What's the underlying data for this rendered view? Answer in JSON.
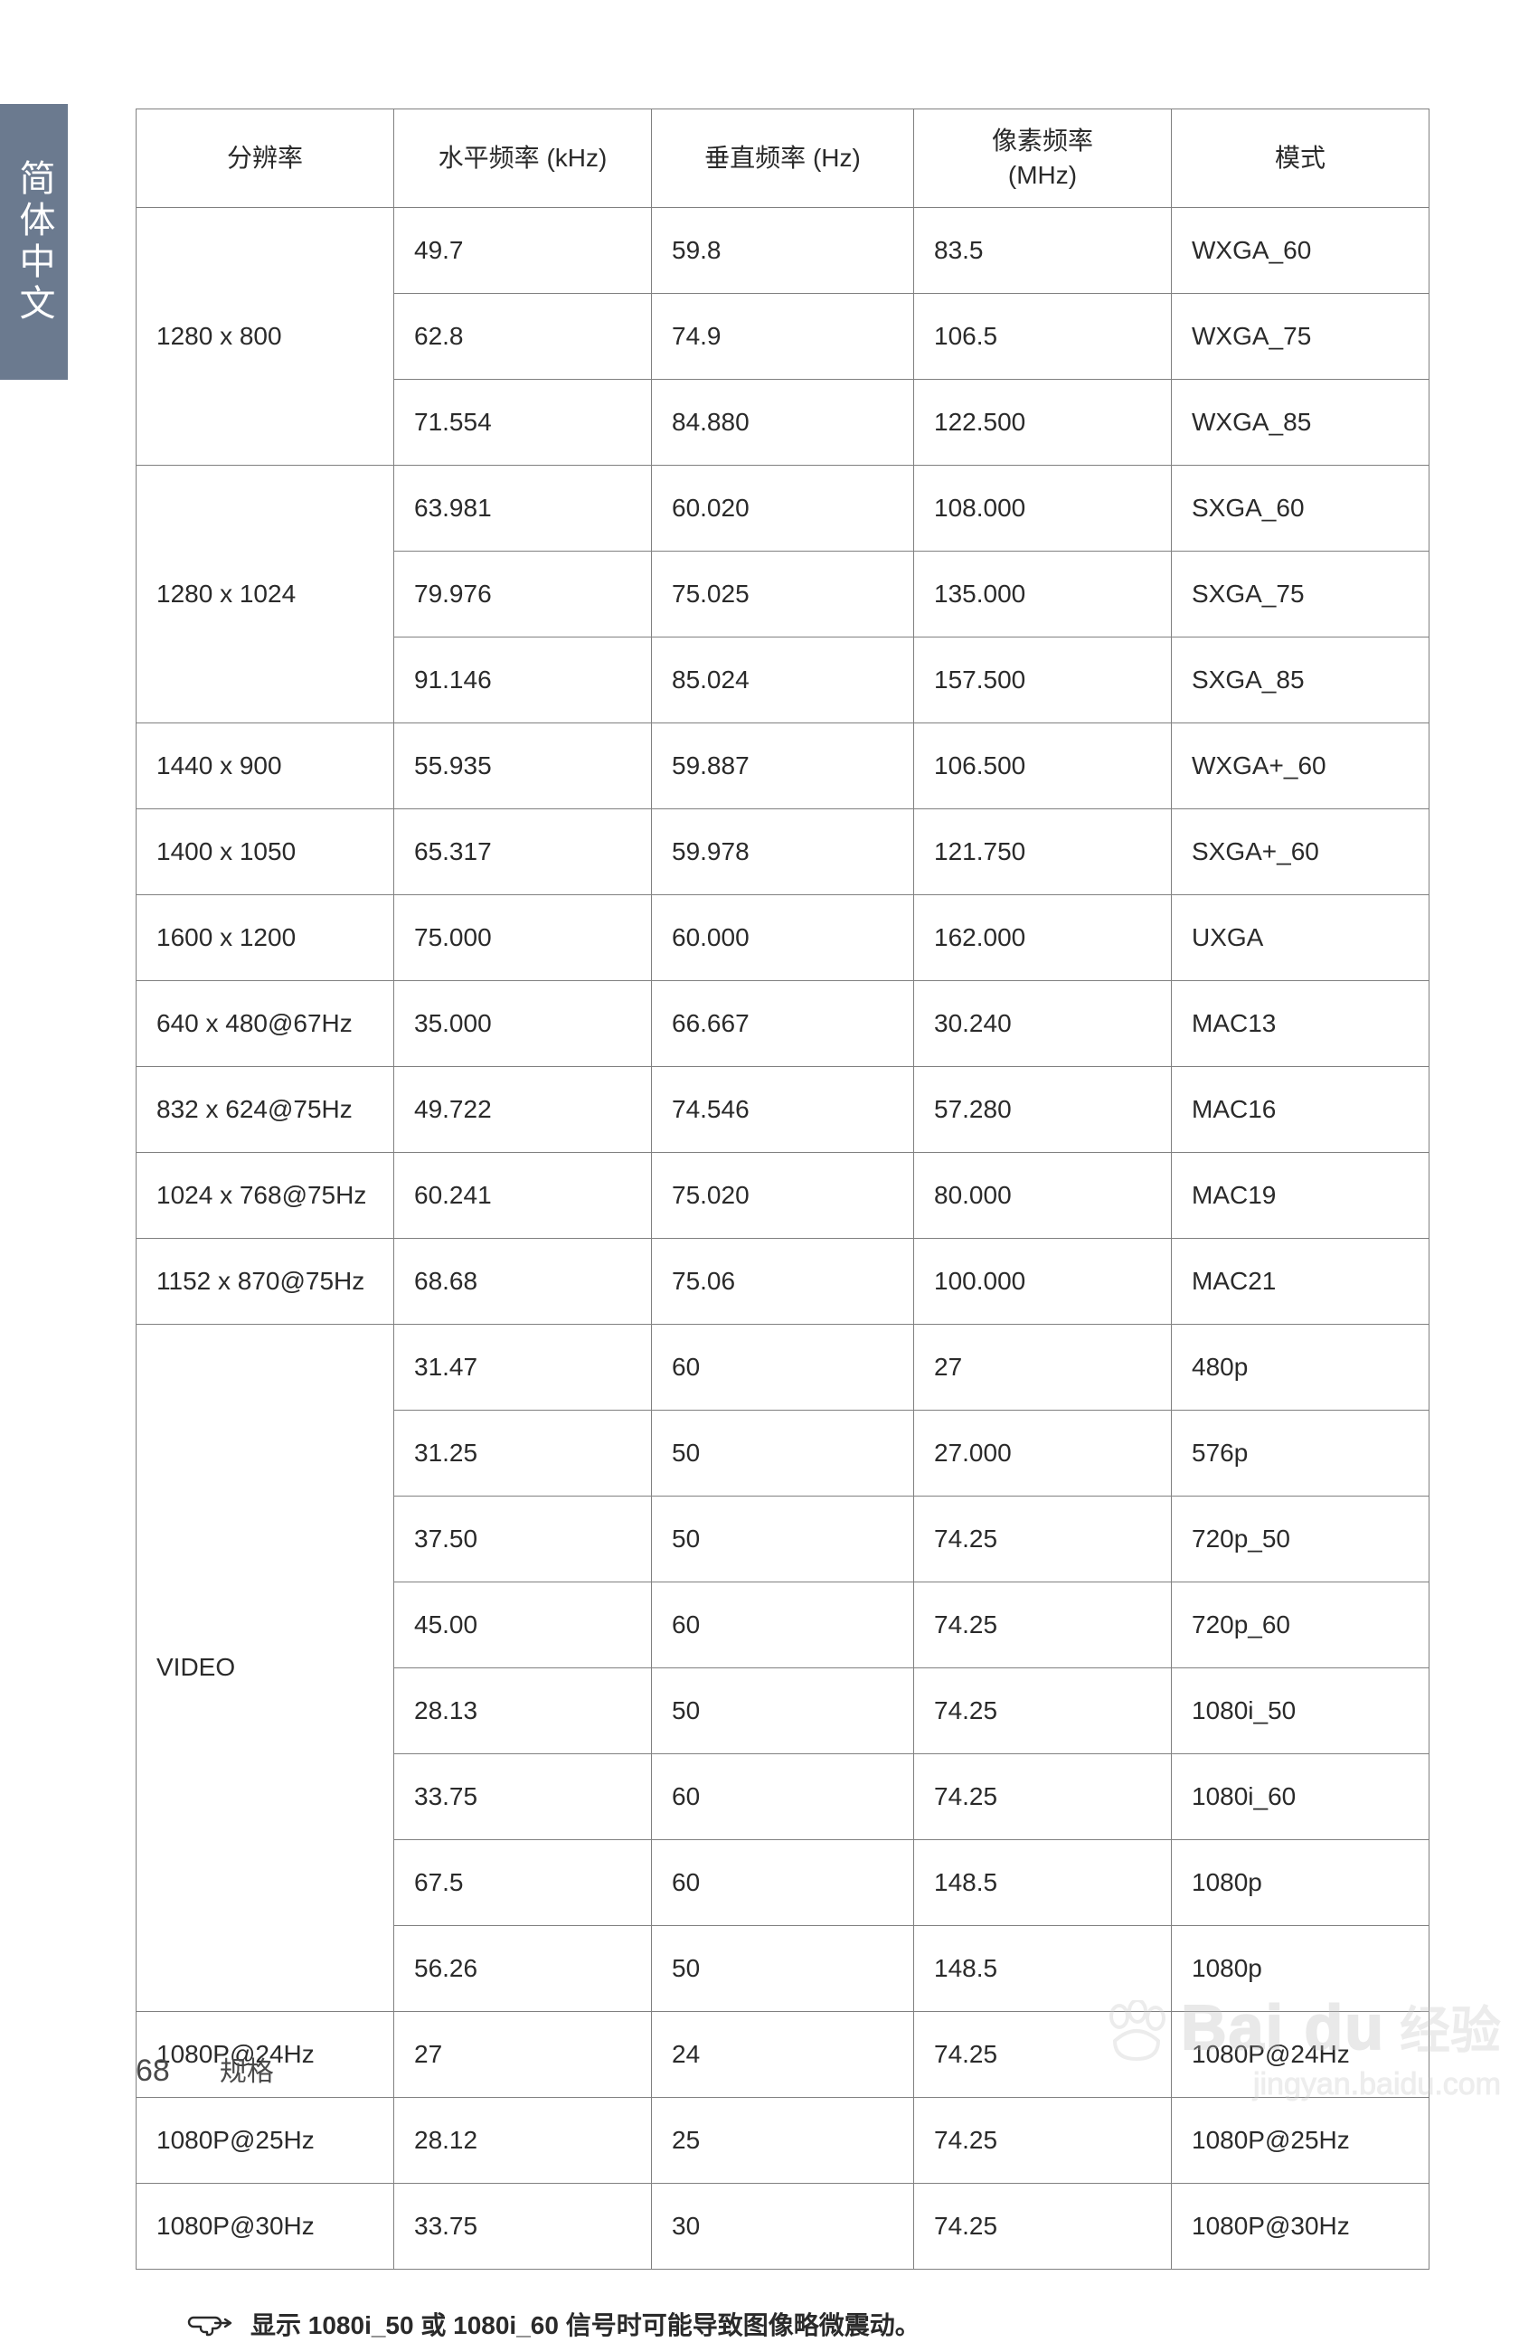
{
  "side_tab": {
    "label": "简体中文",
    "bg": "#6b7a8f",
    "fg": "#ffffff"
  },
  "table": {
    "border_color": "#808080",
    "font_size_pt": 10.5,
    "columns": [
      {
        "key": "res",
        "label": "分辨率"
      },
      {
        "key": "hkhz",
        "label": "水平频率 (kHz)"
      },
      {
        "key": "vhz",
        "label": "垂直频率 (Hz)"
      },
      {
        "key": "pmhz",
        "label": "像素频率\n(MHz)"
      },
      {
        "key": "mode",
        "label": "模式"
      }
    ],
    "groups": [
      {
        "res": "1280 x 800",
        "rows": [
          {
            "hkhz": "49.7",
            "vhz": "59.8",
            "pmhz": "83.5",
            "mode": "WXGA_60"
          },
          {
            "hkhz": "62.8",
            "vhz": "74.9",
            "pmhz": "106.5",
            "mode": "WXGA_75"
          },
          {
            "hkhz": "71.554",
            "vhz": "84.880",
            "pmhz": "122.500",
            "mode": "WXGA_85"
          }
        ]
      },
      {
        "res": "1280 x 1024",
        "rows": [
          {
            "hkhz": "63.981",
            "vhz": "60.020",
            "pmhz": "108.000",
            "mode": "SXGA_60"
          },
          {
            "hkhz": "79.976",
            "vhz": "75.025",
            "pmhz": "135.000",
            "mode": "SXGA_75"
          },
          {
            "hkhz": "91.146",
            "vhz": "85.024",
            "pmhz": "157.500",
            "mode": "SXGA_85"
          }
        ]
      },
      {
        "res": "1440 x 900",
        "rows": [
          {
            "hkhz": "55.935",
            "vhz": "59.887",
            "pmhz": "106.500",
            "mode": "WXGA+_60"
          }
        ]
      },
      {
        "res": "1400 x 1050",
        "rows": [
          {
            "hkhz": "65.317",
            "vhz": "59.978",
            "pmhz": "121.750",
            "mode": "SXGA+_60"
          }
        ]
      },
      {
        "res": "1600 x 1200",
        "rows": [
          {
            "hkhz": "75.000",
            "vhz": "60.000",
            "pmhz": "162.000",
            "mode": "UXGA"
          }
        ]
      },
      {
        "res": "640 x 480@67Hz",
        "rows": [
          {
            "hkhz": "35.000",
            "vhz": "66.667",
            "pmhz": "30.240",
            "mode": "MAC13"
          }
        ]
      },
      {
        "res": "832 x 624@75Hz",
        "rows": [
          {
            "hkhz": "49.722",
            "vhz": "74.546",
            "pmhz": "57.280",
            "mode": "MAC16"
          }
        ]
      },
      {
        "res": "1024 x 768@75Hz",
        "rows": [
          {
            "hkhz": "60.241",
            "vhz": "75.020",
            "pmhz": "80.000",
            "mode": "MAC19"
          }
        ]
      },
      {
        "res": "1152 x 870@75Hz",
        "rows": [
          {
            "hkhz": "68.68",
            "vhz": "75.06",
            "pmhz": "100.000",
            "mode": "MAC21"
          }
        ]
      },
      {
        "res": "VIDEO",
        "rows": [
          {
            "hkhz": "31.47",
            "vhz": "60",
            "pmhz": "27",
            "mode": "480p"
          },
          {
            "hkhz": "31.25",
            "vhz": "50",
            "pmhz": "27.000",
            "mode": "576p"
          },
          {
            "hkhz": "37.50",
            "vhz": "50",
            "pmhz": "74.25",
            "mode": "720p_50"
          },
          {
            "hkhz": "45.00",
            "vhz": "60",
            "pmhz": "74.25",
            "mode": "720p_60"
          },
          {
            "hkhz": "28.13",
            "vhz": "50",
            "pmhz": "74.25",
            "mode": "1080i_50"
          },
          {
            "hkhz": "33.75",
            "vhz": "60",
            "pmhz": "74.25",
            "mode": "1080i_60"
          },
          {
            "hkhz": "67.5",
            "vhz": "60",
            "pmhz": "148.5",
            "mode": "1080p"
          },
          {
            "hkhz": "56.26",
            "vhz": "50",
            "pmhz": "148.5",
            "mode": "1080p"
          }
        ]
      },
      {
        "res": "1080P@24Hz",
        "rows": [
          {
            "hkhz": "27",
            "vhz": "24",
            "pmhz": "74.25",
            "mode": "1080P@24Hz"
          }
        ]
      },
      {
        "res": "1080P@25Hz",
        "rows": [
          {
            "hkhz": "28.12",
            "vhz": "25",
            "pmhz": "74.25",
            "mode": "1080P@25Hz"
          }
        ]
      },
      {
        "res": "1080P@30Hz",
        "rows": [
          {
            "hkhz": "33.75",
            "vhz": "30",
            "pmhz": "74.25",
            "mode": "1080P@30Hz"
          }
        ]
      }
    ]
  },
  "footnote": {
    "icon": "hand-point-icon",
    "text": "显示 1080i_50 或 1080i_60 信号时可能导致图像略微震动。"
  },
  "footer": {
    "page_number": "68",
    "section": "规格"
  },
  "watermark": {
    "brand": "Bai du",
    "suffix": "经验",
    "url": "jingyan.baidu.com",
    "color": "#c7c7c7"
  }
}
